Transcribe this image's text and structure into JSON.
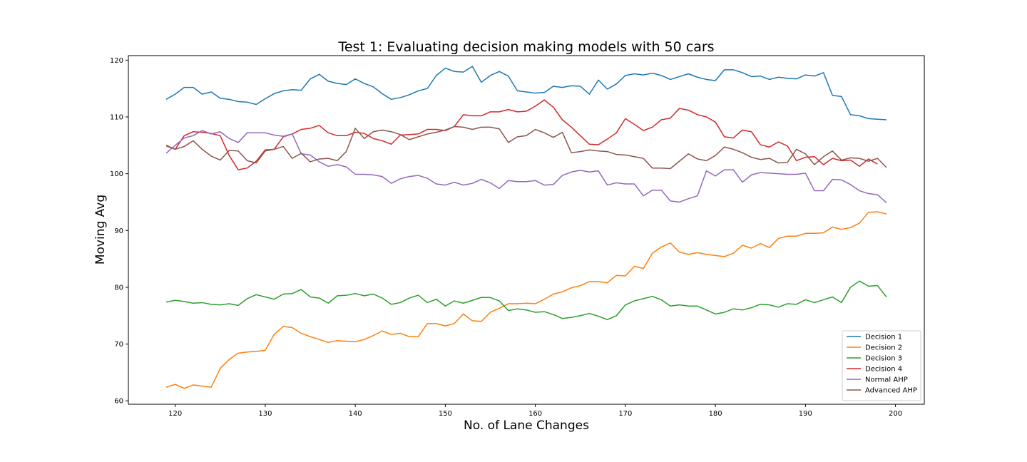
{
  "chart_data": {
    "type": "line",
    "title": "Test 1: Evaluating decision making models with 50 cars",
    "xlabel": "No. of Lane Changes",
    "ylabel": "Moving Avg",
    "xlim": [
      114.8,
      203.2
    ],
    "ylim": [
      59.4,
      120.8
    ],
    "xticks": [
      120,
      130,
      140,
      150,
      160,
      170,
      180,
      190,
      200
    ],
    "yticks": [
      60,
      70,
      80,
      90,
      100,
      110,
      120
    ],
    "legend_position": "lower-right",
    "grid": false,
    "x_start": 119,
    "series": [
      {
        "name": "Decision 1",
        "color": "#1f77b4",
        "values": [
          113.1,
          114.0,
          115.2,
          115.2,
          114.0,
          114.4,
          113.3,
          113.1,
          112.7,
          112.6,
          112.2,
          113.2,
          114.1,
          114.6,
          114.8,
          114.7,
          116.7,
          117.5,
          116.3,
          115.9,
          115.7,
          116.7,
          115.9,
          115.3,
          114.1,
          113.1,
          113.4,
          113.9,
          114.6,
          115.0,
          117.3,
          118.6,
          118.0,
          117.9,
          118.9,
          116.1,
          117.3,
          118.0,
          117.2,
          114.6,
          114.4,
          114.2,
          114.3,
          115.4,
          115.2,
          115.5,
          115.4,
          114.0,
          116.5,
          114.9,
          115.8,
          117.3,
          117.6,
          117.4,
          117.7,
          117.3,
          116.6,
          117.1,
          117.6,
          117.0,
          116.6,
          116.4,
          118.3,
          118.3,
          117.8,
          117.1,
          117.2,
          116.6,
          117.0,
          116.8,
          116.7,
          117.4,
          117.2,
          117.8,
          113.8,
          113.6,
          110.4,
          110.2,
          109.7,
          109.6,
          109.5
        ]
      },
      {
        "name": "Decision 2",
        "color": "#ff7f0e",
        "values": [
          62.4,
          62.9,
          62.2,
          62.8,
          62.6,
          62.4,
          65.7,
          67.3,
          68.4,
          68.6,
          68.7,
          68.9,
          71.7,
          73.1,
          72.9,
          71.9,
          71.3,
          70.8,
          70.3,
          70.6,
          70.5,
          70.4,
          70.8,
          71.5,
          72.3,
          71.7,
          71.9,
          71.3,
          71.3,
          73.6,
          73.6,
          73.2,
          73.6,
          75.3,
          74.1,
          74.0,
          75.6,
          76.3,
          77.1,
          77.1,
          77.2,
          77.1,
          77.9,
          78.8,
          79.2,
          79.9,
          80.3,
          81.0,
          81.0,
          80.8,
          82.1,
          82.0,
          83.7,
          83.3,
          86.0,
          87.1,
          87.8,
          86.2,
          85.8,
          86.1,
          85.8,
          85.6,
          85.4,
          86.0,
          87.4,
          86.9,
          87.7,
          87.0,
          88.6,
          89.0,
          89.0,
          89.5,
          89.5,
          89.6,
          90.6,
          90.2,
          90.5,
          91.3,
          93.2,
          93.3,
          92.9
        ]
      },
      {
        "name": "Decision 3",
        "color": "#2ca02c",
        "values": [
          77.4,
          77.7,
          77.5,
          77.2,
          77.3,
          77.0,
          76.9,
          77.1,
          76.8,
          78.0,
          78.7,
          78.3,
          77.9,
          78.8,
          78.9,
          79.6,
          78.3,
          78.1,
          77.2,
          78.5,
          78.6,
          78.9,
          78.5,
          78.8,
          78.1,
          77.0,
          77.3,
          78.1,
          78.6,
          77.3,
          77.9,
          76.7,
          77.6,
          77.2,
          77.7,
          78.2,
          78.2,
          77.6,
          75.9,
          76.2,
          76.0,
          75.6,
          75.7,
          75.2,
          74.5,
          74.7,
          75.0,
          75.4,
          74.9,
          74.3,
          75.0,
          76.9,
          77.6,
          78.0,
          78.4,
          77.8,
          76.7,
          76.9,
          76.7,
          76.7,
          76.0,
          75.3,
          75.6,
          76.2,
          76.0,
          76.4,
          77.0,
          76.9,
          76.5,
          77.1,
          77.0,
          77.8,
          77.3,
          77.8,
          78.3,
          77.3,
          80.0,
          81.1,
          80.2,
          80.3,
          78.3
        ]
      },
      {
        "name": "Decision 4",
        "color": "#d62728",
        "values": [
          105.0,
          104.3,
          106.7,
          107.4,
          107.3,
          107.1,
          106.7,
          103.2,
          100.7,
          101.0,
          102.2,
          104.2,
          104.3,
          106.5,
          107.0,
          107.8,
          108.0,
          108.5,
          107.2,
          106.7,
          106.7,
          107.3,
          107.1,
          106.2,
          105.8,
          105.2,
          106.8,
          106.9,
          107.0,
          107.8,
          107.8,
          107.6,
          108.3,
          110.4,
          110.2,
          110.2,
          110.9,
          110.9,
          111.3,
          110.9,
          111.0,
          111.9,
          113.0,
          111.7,
          109.5,
          108.2,
          106.7,
          105.2,
          105.1,
          106.1,
          107.2,
          109.7,
          108.7,
          107.6,
          108.2,
          109.5,
          109.8,
          111.5,
          111.2,
          110.4,
          110.0,
          109.1,
          106.5,
          106.3,
          107.7,
          107.4,
          105.1,
          104.7,
          105.6,
          104.9,
          102.3,
          102.9,
          103.0,
          101.6,
          102.7,
          102.3,
          102.4,
          101.3,
          102.6,
          101.7
        ]
      },
      {
        "name": "Normal AHP",
        "color": "#9467bd",
        "values": [
          103.6,
          105.0,
          106.3,
          106.7,
          107.6,
          107.0,
          107.4,
          106.2,
          105.5,
          107.2,
          107.2,
          107.2,
          106.8,
          106.6,
          107.0,
          103.5,
          103.3,
          102.1,
          101.3,
          101.6,
          101.2,
          99.9,
          99.9,
          99.8,
          99.5,
          98.3,
          99.1,
          99.5,
          99.7,
          99.2,
          98.2,
          98.0,
          98.5,
          98.0,
          98.3,
          99.0,
          98.4,
          97.4,
          98.8,
          98.6,
          98.6,
          98.8,
          98.0,
          98.1,
          99.7,
          100.3,
          100.6,
          100.3,
          100.5,
          98.0,
          98.4,
          98.2,
          98.2,
          96.1,
          97.1,
          97.1,
          95.2,
          95.0,
          95.6,
          96.1,
          100.5,
          99.6,
          100.7,
          100.7,
          98.5,
          99.8,
          100.2,
          100.1,
          100.0,
          99.9,
          99.9,
          100.1,
          97.0,
          97.0,
          99.0,
          98.9,
          98.1,
          97.0,
          96.5,
          96.3,
          94.9
        ]
      },
      {
        "name": "Advanced AHP",
        "color": "#8c564b",
        "values": [
          104.9,
          104.3,
          104.8,
          105.8,
          104.3,
          103.1,
          102.4,
          104.1,
          104.0,
          102.3,
          101.9,
          104.0,
          104.3,
          104.8,
          102.7,
          103.6,
          102.1,
          102.6,
          102.7,
          102.3,
          103.9,
          108.0,
          106.2,
          107.4,
          107.7,
          107.4,
          106.9,
          106.0,
          106.5,
          107.0,
          107.3,
          107.7,
          108.3,
          108.2,
          107.8,
          108.2,
          108.2,
          107.9,
          105.5,
          106.5,
          106.7,
          107.8,
          107.2,
          106.4,
          107.3,
          103.7,
          103.9,
          104.2,
          104.0,
          103.9,
          103.4,
          103.3,
          103.0,
          102.7,
          101.0,
          101.0,
          100.9,
          102.2,
          103.5,
          102.6,
          102.3,
          103.2,
          104.7,
          104.3,
          103.7,
          102.9,
          102.5,
          102.7,
          101.9,
          102.0,
          104.3,
          103.5,
          101.6,
          103.0,
          104.0,
          102.4,
          102.8,
          102.7,
          102.2,
          102.7,
          101.1
        ]
      }
    ]
  }
}
